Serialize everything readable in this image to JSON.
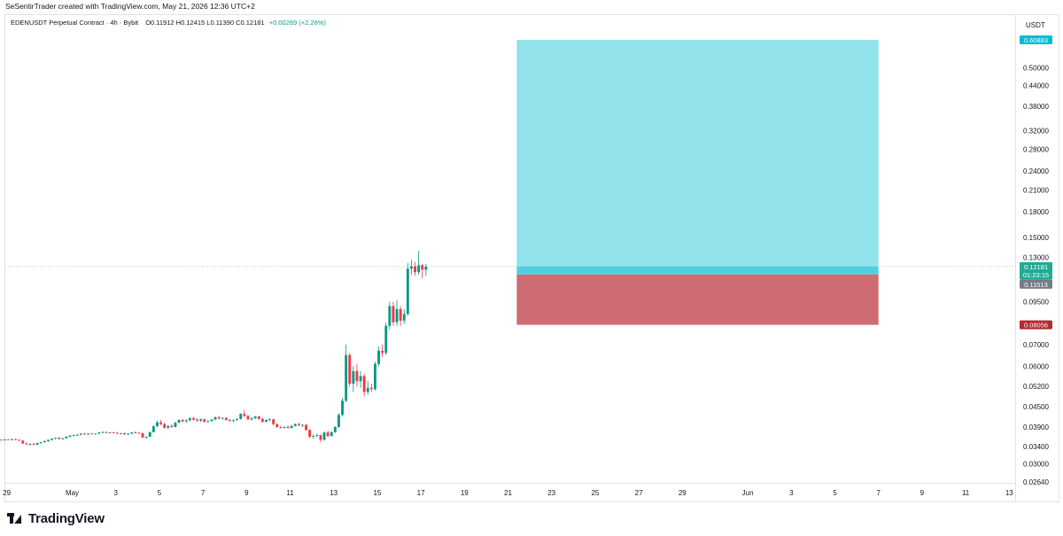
{
  "header": {
    "credit": "SeSentirTrader created with TradingView.com, May 21, 2026 12:36 UTC+2"
  },
  "legend": {
    "symbol": "EDENUSDT Perpetual Contract · 4h · Bybit",
    "ohlc": "O0.11912  H0.12415  L0.11390  C0.12181",
    "change": "+0.00269 (+2.26%)"
  },
  "price_axis": {
    "currency": "USDT"
  },
  "footer": {
    "brand": "TradingView"
  },
  "colors": {
    "up": "#089981",
    "down": "#f23645",
    "target_zone": "#91e2ea",
    "stop_zone": "#cd6c72",
    "entry_band": "#4dd0e1",
    "target_label": "#00bcd4",
    "current_label": "#22ab94",
    "stop_label": "#b22833",
    "entry_label": "#787b86"
  },
  "chart_data": {
    "type": "candlestick",
    "timeframe": "4h",
    "scale": "log",
    "ylim": [
      0.0235,
      0.68
    ],
    "y_ticks": [
      "0.50000",
      "0.44000",
      "0.38000",
      "0.32000",
      "0.28000",
      "0.24000",
      "0.21000",
      "0.18000",
      "0.15000",
      "0.13000",
      "0.09500",
      "0.07000",
      "0.06000",
      "0.05200",
      "0.04500",
      "0.03900",
      "0.03400",
      "0.03000",
      "0.02640"
    ],
    "x_ticks": [
      {
        "label": "29",
        "day": -2
      },
      {
        "label": "May",
        "day": 1
      },
      {
        "label": "3",
        "day": 3
      },
      {
        "label": "5",
        "day": 5
      },
      {
        "label": "7",
        "day": 7
      },
      {
        "label": "9",
        "day": 9
      },
      {
        "label": "11",
        "day": 11
      },
      {
        "label": "13",
        "day": 13
      },
      {
        "label": "15",
        "day": 15
      },
      {
        "label": "17",
        "day": 17
      },
      {
        "label": "19",
        "day": 19
      },
      {
        "label": "21",
        "day": 21
      },
      {
        "label": "23",
        "day": 23
      },
      {
        "label": "25",
        "day": 25
      },
      {
        "label": "27",
        "day": 27
      },
      {
        "label": "29",
        "day": 29
      },
      {
        "label": "Jun",
        "day": 32
      },
      {
        "label": "3",
        "day": 34
      },
      {
        "label": "5",
        "day": 36
      },
      {
        "label": "7",
        "day": 38
      },
      {
        "label": "9",
        "day": 40
      },
      {
        "label": "11",
        "day": 42
      },
      {
        "label": "13",
        "day": 44
      }
    ],
    "last_price": "0.12181",
    "countdown": "01:23:15",
    "position": {
      "start_day": 21.4,
      "end_day": 38.0,
      "target": "0.60883",
      "entry": "0.11513",
      "stop": "0.08056"
    },
    "candles_4h": [
      [
        0.0355,
        0.0356,
        0.0354,
        0.0355
      ],
      [
        0.0355,
        0.0357,
        0.0354,
        0.0356
      ],
      [
        0.0356,
        0.0357,
        0.0355,
        0.0355
      ],
      [
        0.0355,
        0.0358,
        0.0354,
        0.0357
      ],
      [
        0.0357,
        0.0358,
        0.0355,
        0.0356
      ],
      [
        0.0356,
        0.0359,
        0.0355,
        0.0358
      ],
      [
        0.0358,
        0.0359,
        0.0355,
        0.0356
      ],
      [
        0.0356,
        0.0357,
        0.0353,
        0.0354
      ],
      [
        0.0354,
        0.0355,
        0.0345,
        0.0347
      ],
      [
        0.0347,
        0.035,
        0.0343,
        0.0345
      ],
      [
        0.0345,
        0.0348,
        0.0341,
        0.0346
      ],
      [
        0.0346,
        0.0349,
        0.0343,
        0.0344
      ],
      [
        0.0344,
        0.0349,
        0.0343,
        0.0348
      ],
      [
        0.0348,
        0.0351,
        0.0346,
        0.035
      ],
      [
        0.035,
        0.0354,
        0.0349,
        0.0353
      ],
      [
        0.0353,
        0.0357,
        0.0351,
        0.0356
      ],
      [
        0.0356,
        0.036,
        0.0354,
        0.0359
      ],
      [
        0.0359,
        0.0362,
        0.0357,
        0.0361
      ],
      [
        0.0361,
        0.0363,
        0.0357,
        0.0358
      ],
      [
        0.0358,
        0.0361,
        0.0356,
        0.036
      ],
      [
        0.036,
        0.0365,
        0.0359,
        0.0364
      ],
      [
        0.0364,
        0.0368,
        0.0362,
        0.0367
      ],
      [
        0.0367,
        0.037,
        0.0365,
        0.0368
      ],
      [
        0.0368,
        0.0371,
        0.0366,
        0.0369
      ],
      [
        0.0369,
        0.0373,
        0.0368,
        0.0372
      ],
      [
        0.0372,
        0.0374,
        0.0369,
        0.037
      ],
      [
        0.037,
        0.0373,
        0.0368,
        0.0372
      ],
      [
        0.0372,
        0.0374,
        0.037,
        0.0371
      ],
      [
        0.0371,
        0.0373,
        0.0369,
        0.0372
      ],
      [
        0.0372,
        0.0376,
        0.0371,
        0.0375
      ],
      [
        0.0375,
        0.0378,
        0.0373,
        0.0376
      ],
      [
        0.0376,
        0.0378,
        0.0373,
        0.0374
      ],
      [
        0.0374,
        0.0376,
        0.0372,
        0.0375
      ],
      [
        0.0375,
        0.0377,
        0.0373,
        0.0374
      ],
      [
        0.0374,
        0.0376,
        0.0371,
        0.0372
      ],
      [
        0.0372,
        0.0374,
        0.037,
        0.0373
      ],
      [
        0.0373,
        0.0375,
        0.0369,
        0.037
      ],
      [
        0.037,
        0.0373,
        0.0368,
        0.0372
      ],
      [
        0.0372,
        0.0376,
        0.0371,
        0.0375
      ],
      [
        0.0375,
        0.0378,
        0.0373,
        0.0374
      ],
      [
        0.0374,
        0.0377,
        0.0372,
        0.0373
      ],
      [
        0.0373,
        0.0375,
        0.036,
        0.0362
      ],
      [
        0.0362,
        0.0366,
        0.0358,
        0.0364
      ],
      [
        0.0364,
        0.0378,
        0.0363,
        0.0376
      ],
      [
        0.0376,
        0.0395,
        0.0375,
        0.0392
      ],
      [
        0.0392,
        0.0408,
        0.039,
        0.0403
      ],
      [
        0.0403,
        0.041,
        0.0395,
        0.0398
      ],
      [
        0.0398,
        0.0402,
        0.0385,
        0.0388
      ],
      [
        0.0388,
        0.0395,
        0.0384,
        0.0393
      ],
      [
        0.0393,
        0.0398,
        0.0388,
        0.039
      ],
      [
        0.039,
        0.0405,
        0.0389,
        0.0402
      ],
      [
        0.0402,
        0.0412,
        0.04,
        0.041
      ],
      [
        0.041,
        0.0413,
        0.0403,
        0.0406
      ],
      [
        0.0406,
        0.0412,
        0.0402,
        0.0409
      ],
      [
        0.0409,
        0.0418,
        0.0406,
        0.0415
      ],
      [
        0.0415,
        0.042,
        0.0408,
        0.0411
      ],
      [
        0.0411,
        0.0415,
        0.0405,
        0.0408
      ],
      [
        0.0408,
        0.0414,
        0.0404,
        0.0412
      ],
      [
        0.0412,
        0.0414,
        0.0402,
        0.0405
      ],
      [
        0.0405,
        0.0409,
        0.0401,
        0.0407
      ],
      [
        0.0407,
        0.0413,
        0.0405,
        0.0411
      ],
      [
        0.0411,
        0.042,
        0.0409,
        0.0418
      ],
      [
        0.0418,
        0.0422,
        0.0412,
        0.0414
      ],
      [
        0.0414,
        0.0418,
        0.041,
        0.0416
      ],
      [
        0.0416,
        0.0418,
        0.0408,
        0.041
      ],
      [
        0.041,
        0.0413,
        0.0405,
        0.0408
      ],
      [
        0.0408,
        0.0412,
        0.0403,
        0.041
      ],
      [
        0.041,
        0.0415,
        0.0407,
        0.0413
      ],
      [
        0.0413,
        0.043,
        0.0411,
        0.0428
      ],
      [
        0.0428,
        0.044,
        0.0418,
        0.0422
      ],
      [
        0.0422,
        0.0425,
        0.041,
        0.0412
      ],
      [
        0.0412,
        0.0418,
        0.0408,
        0.0415
      ],
      [
        0.0415,
        0.0422,
        0.0412,
        0.042
      ],
      [
        0.042,
        0.0423,
        0.041,
        0.0413
      ],
      [
        0.0413,
        0.0416,
        0.0402,
        0.0405
      ],
      [
        0.0405,
        0.0412,
        0.0403,
        0.041
      ],
      [
        0.041,
        0.0415,
        0.0406,
        0.0412
      ],
      [
        0.0412,
        0.0414,
        0.0395,
        0.0398
      ],
      [
        0.0398,
        0.04,
        0.0388,
        0.039
      ],
      [
        0.039,
        0.0393,
        0.0385,
        0.0388
      ],
      [
        0.0388,
        0.0392,
        0.0385,
        0.039
      ],
      [
        0.039,
        0.0394,
        0.0386,
        0.0387
      ],
      [
        0.0387,
        0.0395,
        0.0386,
        0.0393
      ],
      [
        0.0393,
        0.04,
        0.0391,
        0.0398
      ],
      [
        0.0398,
        0.0402,
        0.0392,
        0.0395
      ],
      [
        0.0395,
        0.0398,
        0.039,
        0.0396
      ],
      [
        0.0396,
        0.0398,
        0.038,
        0.0382
      ],
      [
        0.0382,
        0.0384,
        0.036,
        0.0364
      ],
      [
        0.0364,
        0.037,
        0.0358,
        0.0366
      ],
      [
        0.0366,
        0.0372,
        0.0362,
        0.0368
      ],
      [
        0.0368,
        0.037,
        0.035,
        0.0356
      ],
      [
        0.0356,
        0.0378,
        0.0354,
        0.0375
      ],
      [
        0.0375,
        0.038,
        0.0362,
        0.0366
      ],
      [
        0.0366,
        0.0378,
        0.0364,
        0.0376
      ],
      [
        0.0376,
        0.0392,
        0.0374,
        0.039
      ],
      [
        0.039,
        0.043,
        0.0388,
        0.0425
      ],
      [
        0.0425,
        0.048,
        0.042,
        0.047
      ],
      [
        0.047,
        0.07,
        0.0465,
        0.065
      ],
      [
        0.065,
        0.066,
        0.052,
        0.053
      ],
      [
        0.053,
        0.06,
        0.05,
        0.058
      ],
      [
        0.058,
        0.061,
        0.052,
        0.054
      ],
      [
        0.054,
        0.058,
        0.0515,
        0.056
      ],
      [
        0.056,
        0.057,
        0.0485,
        0.05
      ],
      [
        0.05,
        0.054,
        0.049,
        0.0515
      ],
      [
        0.0515,
        0.053,
        0.05,
        0.051
      ],
      [
        0.051,
        0.062,
        0.0505,
        0.061
      ],
      [
        0.061,
        0.069,
        0.06,
        0.067
      ],
      [
        0.067,
        0.07,
        0.064,
        0.066
      ],
      [
        0.066,
        0.082,
        0.065,
        0.08
      ],
      [
        0.08,
        0.095,
        0.078,
        0.092
      ],
      [
        0.092,
        0.095,
        0.08,
        0.082
      ],
      [
        0.082,
        0.096,
        0.08,
        0.09
      ],
      [
        0.09,
        0.092,
        0.08,
        0.083
      ],
      [
        0.083,
        0.09,
        0.081,
        0.087
      ],
      [
        0.087,
        0.125,
        0.086,
        0.12
      ],
      [
        0.12,
        0.128,
        0.115,
        0.122
      ],
      [
        0.122,
        0.126,
        0.114,
        0.117
      ],
      [
        0.117,
        0.136,
        0.115,
        0.123
      ],
      [
        0.123,
        0.124,
        0.112,
        0.1191
      ],
      [
        0.1191,
        0.1242,
        0.1139,
        0.1218
      ]
    ]
  }
}
